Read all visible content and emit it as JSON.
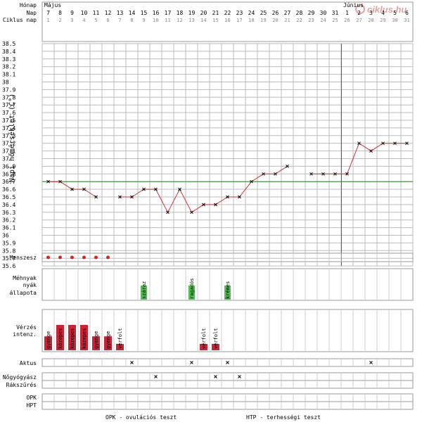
{
  "brand": {
    "logo_text": "ciklus.hu",
    "accent": "#cc2222"
  },
  "rows": {
    "month_label": "Hónap",
    "day_label": "Nap",
    "cycle_label": "Ciklus nap"
  },
  "months": [
    {
      "name": "Május",
      "start_index": 0
    },
    {
      "name": "Június",
      "start_index": 25
    }
  ],
  "days": [
    7,
    8,
    9,
    10,
    11,
    12,
    13,
    14,
    15,
    16,
    17,
    18,
    19,
    20,
    21,
    22,
    23,
    24,
    25,
    26,
    27,
    28,
    29,
    30,
    31,
    1,
    2,
    3,
    4,
    5,
    6
  ],
  "cycle_days": [
    1,
    2,
    3,
    4,
    5,
    6,
    7,
    8,
    9,
    10,
    11,
    12,
    13,
    14,
    15,
    16,
    17,
    18,
    19,
    20,
    21,
    22,
    23,
    24,
    25,
    26,
    27,
    28,
    29,
    30,
    31
  ],
  "axis": {
    "ylabel": "Napi hőmérséklet (C°)",
    "ymin": 35.6,
    "ymax": 38.5,
    "step": 0.1
  },
  "chart_data": {
    "type": "line",
    "title": "",
    "ylabel": "Napi hőmérséklet (C°)",
    "ylim": [
      35.6,
      38.5
    ],
    "x": [
      1,
      2,
      3,
      4,
      5,
      6,
      7,
      8,
      9,
      10,
      11,
      12,
      13,
      14,
      15,
      16,
      17,
      18,
      19,
      20,
      21,
      22,
      23,
      24,
      25,
      26,
      27,
      28,
      29,
      30,
      31
    ],
    "series": [
      {
        "name": "",
        "color": "#cc3333",
        "values": [
          36.7,
          36.7,
          36.6,
          36.6,
          36.5,
          null,
          36.5,
          36.5,
          36.6,
          36.6,
          36.3,
          36.6,
          36.3,
          36.4,
          36.4,
          36.5,
          36.5,
          36.7,
          36.8,
          36.8,
          36.9,
          null,
          36.8,
          36.8,
          36.8,
          36.8,
          37.2,
          37.1,
          37.2,
          37.2,
          37.2
        ]
      }
    ],
    "coverline": 36.7,
    "ovulation_cycle_day": 26,
    "grid": true
  },
  "sections": {
    "menses": {
      "label": "Menszesz",
      "days": [
        1,
        2,
        3,
        4,
        5,
        6
      ]
    },
    "cervix": {
      "label_lines": [
        "Méhnyak",
        "nyák",
        "állapota"
      ],
      "entries": [
        {
          "day": 9,
          "text": "száraz"
        },
        {
          "day": 13,
          "text": "ragadós"
        },
        {
          "day": 16,
          "text": "krémes"
        }
      ]
    },
    "bleeding": {
      "label_lines": [
        "Vérzés",
        "intenz."
      ],
      "entries": [
        {
          "day": 1,
          "text": "gyenge",
          "level": 0.55
        },
        {
          "day": 2,
          "text": "közepes",
          "level": 1.0
        },
        {
          "day": 3,
          "text": "közepes",
          "level": 1.0
        },
        {
          "day": 4,
          "text": "közepes",
          "level": 1.0
        },
        {
          "day": 5,
          "text": "gyenge",
          "level": 0.55
        },
        {
          "day": 6,
          "text": "gyenge",
          "level": 0.55
        },
        {
          "day": 7,
          "text": "vérfolt",
          "level": 0.25
        },
        {
          "day": 14,
          "text": "vérfolt",
          "level": 0.25
        },
        {
          "day": 15,
          "text": "vérfolt",
          "level": 0.25
        }
      ]
    },
    "intercourse": {
      "label": "Aktus",
      "days": [
        8,
        13,
        16,
        28
      ]
    },
    "gyno": {
      "label": "Nőgyógyász",
      "days": [
        10,
        15,
        17
      ]
    },
    "screening": {
      "label": "Rákszűrés",
      "days": []
    },
    "opk": {
      "label": "OPK",
      "days": []
    },
    "hpt": {
      "label": "HPT",
      "days": []
    }
  },
  "footer": {
    "opk_text": "OPK - ovulációs teszt",
    "hpt_text": "HTP - terhességi teszt"
  }
}
